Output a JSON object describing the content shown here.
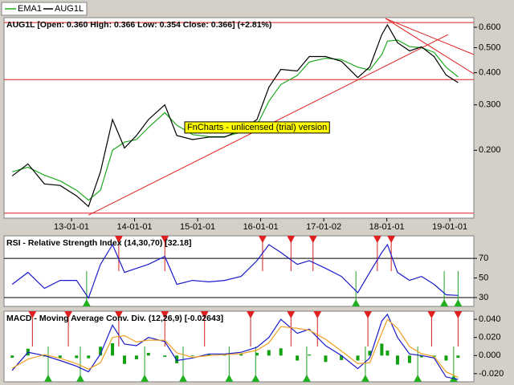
{
  "chart_data": [
    {
      "type": "line",
      "title": "AUG1L [Open: 0.360  High: 0.366  Low: 0.354  Close: 0.366] (+2.81%)",
      "annotation": "FnCharts - unlicensed (trial) version",
      "x": [
        2012.06,
        2012.31,
        2012.57,
        2012.82,
        2013.08,
        2013.27,
        2013.46,
        2013.65,
        2013.84,
        2014.03,
        2014.22,
        2014.48,
        2014.67,
        2014.92,
        2015.18,
        2015.43,
        2015.69,
        2015.94,
        2016.13,
        2016.32,
        2016.58,
        2016.77,
        2017.03,
        2017.28,
        2017.54,
        2017.73,
        2017.92,
        2018.01,
        2018.17,
        2018.36,
        2018.55,
        2018.75,
        2018.94,
        2019.13
      ],
      "series": [
        {
          "name": "EMA1",
          "color": "#1faa1f",
          "values": [
            0.165,
            0.172,
            0.16,
            0.152,
            0.14,
            0.128,
            0.14,
            0.2,
            0.215,
            0.22,
            0.245,
            0.28,
            0.25,
            0.23,
            0.226,
            0.226,
            0.235,
            0.25,
            0.31,
            0.36,
            0.39,
            0.44,
            0.455,
            0.45,
            0.42,
            0.41,
            0.47,
            0.53,
            0.535,
            0.505,
            0.5,
            0.48,
            0.42,
            0.385
          ]
        },
        {
          "name": "AUG1L",
          "color": "#000000",
          "values": [
            0.159,
            0.177,
            0.148,
            0.146,
            0.133,
            0.121,
            0.165,
            0.263,
            0.204,
            0.228,
            0.263,
            0.3,
            0.228,
            0.22,
            0.225,
            0.225,
            0.24,
            0.263,
            0.351,
            0.412,
            0.406,
            0.462,
            0.462,
            0.443,
            0.383,
            0.421,
            0.562,
            0.613,
            0.523,
            0.486,
            0.504,
            0.462,
            0.392,
            0.366
          ]
        }
      ],
      "xlim": [
        2011.93,
        2019.38
      ],
      "xticks": [
        {
          "value": 2013.0,
          "label": "13-01-01"
        },
        {
          "value": 2014.0,
          "label": "14-01-01"
        },
        {
          "value": 2015.0,
          "label": "15-01-01"
        },
        {
          "value": 2016.0,
          "label": "16-01-01"
        },
        {
          "value": 2017.0,
          "label": "17-01-02"
        },
        {
          "value": 2018.0,
          "label": "18-01-01"
        },
        {
          "value": 2019.0,
          "label": "19-01-01"
        }
      ],
      "ylim": [
        0.109,
        0.654
      ],
      "log_scale": true,
      "yticks": [
        {
          "value": 0.2,
          "label": "0.200"
        },
        {
          "value": 0.3,
          "label": "0.300"
        },
        {
          "value": 0.4,
          "label": "0.400"
        },
        {
          "value": 0.5,
          "label": "0.500"
        },
        {
          "value": 0.6,
          "label": "0.600"
        }
      ],
      "hlines": [
        0.626,
        0.376,
        0.114
      ],
      "hline_color": "#e02020",
      "trendlines": [
        [
          [
            2013.27,
            0.112
          ],
          [
            2018.97,
            0.562
          ]
        ],
        [
          [
            2017.98,
            0.649
          ],
          [
            2019.92,
            0.415
          ]
        ],
        [
          [
            2017.98,
            0.649
          ],
          [
            2019.92,
            0.327
          ]
        ]
      ],
      "trendline_color": "#e02020"
    },
    {
      "type": "line",
      "title": "RSI - Relative Strength Index (14,30,70) [32.18]",
      "series": [
        {
          "name": "RSI",
          "color": "#1a1acc",
          "values": [
            43.5,
            55.7,
            39.4,
            47.5,
            47.5,
            29.5,
            63.9,
            84,
            55.7,
            59.8,
            63.9,
            72,
            43.5,
            47.5,
            46,
            47.5,
            51.6,
            67.6,
            84,
            76,
            63.9,
            67.6,
            59.8,
            51.6,
            35,
            55.7,
            76,
            84,
            55.7,
            47.5,
            51.6,
            43.5,
            32.9,
            32.18
          ]
        }
      ],
      "ylim": [
        21,
        93
      ],
      "yticks": [
        30,
        50,
        70
      ],
      "hlines": [
        70,
        30
      ],
      "hline_color": "#000000",
      "sell_signals": [
        2013.75,
        2014.48,
        2016.03,
        2016.48,
        2016.83,
        2017.85,
        2018.07
      ],
      "buy_signals": [
        2013.24,
        2017.51,
        2018.91,
        2019.13
      ]
    },
    {
      "type": "line",
      "title": "MACD - Moving Average Conv. Div. (12,26,9) [-0.02643]",
      "series": [
        {
          "name": "MACD",
          "color": "#1a1acc",
          "values": [
            -0.0164,
            0.0036,
            0,
            -0.0055,
            -0.0118,
            -0.018,
            0.0018,
            0.0336,
            0.0127,
            0.0109,
            0.02,
            0.0155,
            -0.0055,
            -0.0027,
            0.0018,
            0.0018,
            0.0036,
            0.0091,
            0.02,
            0.04,
            0.0245,
            0.0291,
            0.0109,
            0,
            -0.0145,
            -0.0027,
            0.0382,
            0.0455,
            0.02,
            0.0018,
            0,
            -0.0027,
            -0.0236,
            -0.02643
          ]
        },
        {
          "name": "Signal",
          "color": "#f0a020",
          "values": [
            -0.014,
            -0.004,
            0.001,
            -0.003,
            -0.009,
            -0.015,
            -0.008,
            0.02,
            0.022,
            0.015,
            0.017,
            0.017,
            0.003,
            -0.002,
            0,
            0.001,
            0.002,
            0.006,
            0.014,
            0.032,
            0.03,
            0.028,
            0.018,
            0.005,
            -0.009,
            -0.008,
            0.025,
            0.04,
            0.03,
            0.01,
            0.002,
            -0.001,
            -0.018,
            -0.024
          ]
        }
      ],
      "histogram": {
        "color": "#10a010",
        "values": [
          -0.0024,
          0.0076,
          -0.001,
          -0.0025,
          -0.0028,
          -0.003,
          0.0098,
          0.0136,
          -0.0093,
          -0.0041,
          0.003,
          -0.0015,
          -0.0085,
          -0.0007,
          0.0018,
          0.0008,
          0.0016,
          0.0031,
          0.006,
          0.008,
          -0.0055,
          0.0011,
          -0.0071,
          -0.005,
          -0.0055,
          0.0053,
          0.0132,
          0.0055,
          -0.01,
          -0.0082,
          -0.002,
          -0.0017,
          -0.0056,
          -0.0024
        ]
      },
      "ylim": [
        -0.029,
        0.049
      ],
      "yticks": [
        {
          "value": -0.02,
          "label": "-0.020"
        },
        {
          "value": 0,
          "label": "0.000"
        },
        {
          "value": 0.02,
          "label": "0.020"
        },
        {
          "value": 0.04,
          "label": "0.040"
        }
      ],
      "sell_signals": [
        2012.38,
        2012.95,
        2013.75,
        2014.48,
        2015.11,
        2015.84,
        2016.48,
        2016.9,
        2017.7,
        2018.71,
        2019.13
      ],
      "buy_signals": [
        2012.63,
        2013.14,
        2014.16,
        2014.77,
        2015.5,
        2015.92,
        2016.73,
        2017.66,
        2018.49,
        2019.06
      ]
    }
  ]
}
